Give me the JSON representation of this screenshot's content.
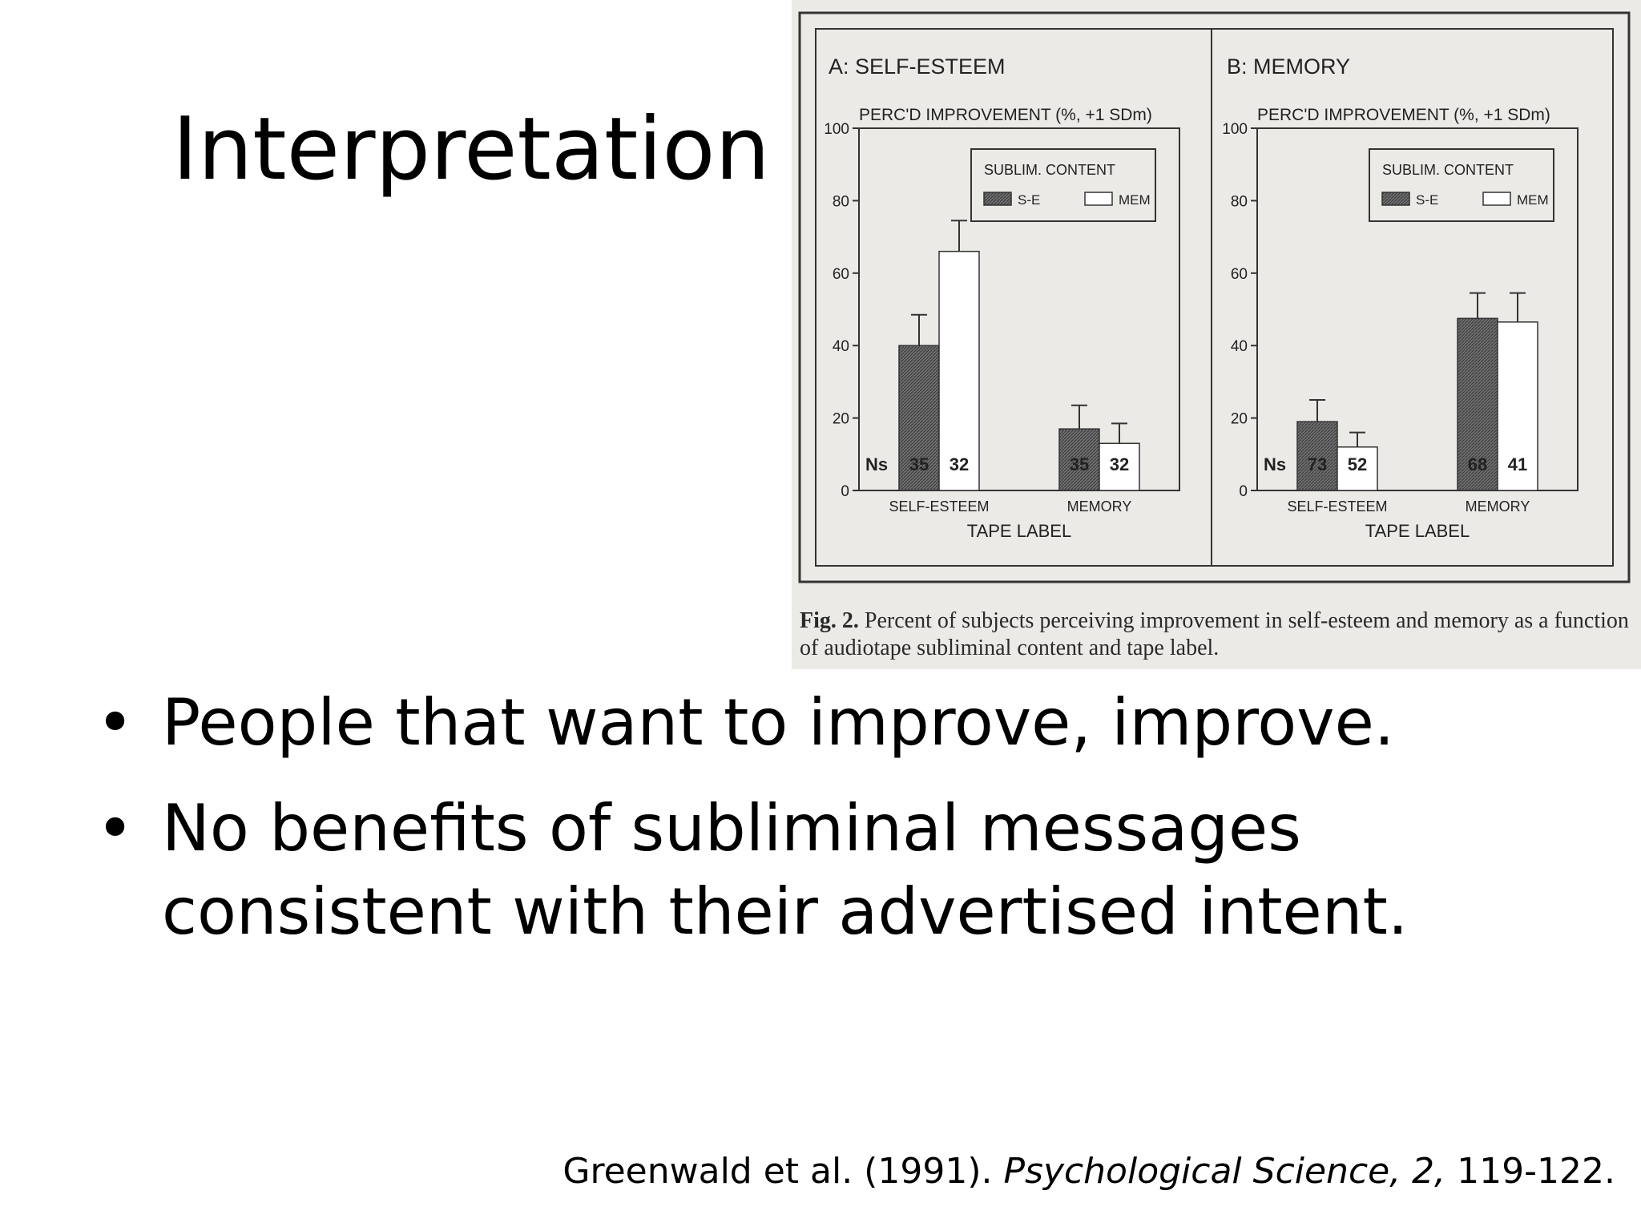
{
  "slide": {
    "title": "Interpretation",
    "bullets": [
      "People that want to improve, improve.",
      "No benefits of subliminal messages consistent with their advertised intent."
    ],
    "citation": {
      "authors": "Greenwald et al. (1991).",
      "journal": "Psychological Science, 2,",
      "pages": "119-122."
    }
  },
  "figure": {
    "caption_label": "Fig. 2.",
    "caption_text": "Percent of subjects perceiving improvement in self-esteem and memory as a function of audiotape subliminal content and tape label.",
    "colors": {
      "se_fill": "#6e6e6e",
      "mem_fill": "#ffffff",
      "frame": "#333333",
      "background": "#eceae6"
    }
  },
  "chart_data": [
    {
      "type": "bar",
      "title": "A: SELF-ESTEEM",
      "ylabel": "PERC'D IMPROVEMENT (%, +1 SDm)",
      "xlabel": "TAPE LABEL",
      "ylim": [
        0,
        100
      ],
      "yticks": [
        0,
        20,
        40,
        60,
        80,
        100
      ],
      "categories": [
        "SELF-ESTEEM",
        "MEMORY"
      ],
      "legend_title": "SUBLIM. CONTENT",
      "legend_position": "top-right",
      "n_label": "Ns",
      "series": [
        {
          "name": "S-E",
          "values": [
            40,
            17
          ],
          "errors": [
            8.5,
            6.5
          ],
          "ns": [
            "35",
            "35"
          ]
        },
        {
          "name": "MEM",
          "values": [
            66,
            13
          ],
          "errors": [
            8.5,
            5.5
          ],
          "ns": [
            "32",
            "32"
          ]
        }
      ]
    },
    {
      "type": "bar",
      "title": "B: MEMORY",
      "ylabel": "PERC'D IMPROVEMENT (%, +1 SDm)",
      "xlabel": "TAPE LABEL",
      "ylim": [
        0,
        100
      ],
      "yticks": [
        0,
        20,
        40,
        60,
        80,
        100
      ],
      "categories": [
        "SELF-ESTEEM",
        "MEMORY"
      ],
      "legend_title": "SUBLIM. CONTENT",
      "legend_position": "top-right",
      "n_label": "Ns",
      "series": [
        {
          "name": "S-E",
          "values": [
            19,
            47.5
          ],
          "errors": [
            6,
            7
          ],
          "ns": [
            "73",
            "68"
          ]
        },
        {
          "name": "MEM",
          "values": [
            12,
            46.5
          ],
          "errors": [
            4,
            8
          ],
          "ns": [
            "52",
            "41"
          ]
        }
      ]
    }
  ]
}
